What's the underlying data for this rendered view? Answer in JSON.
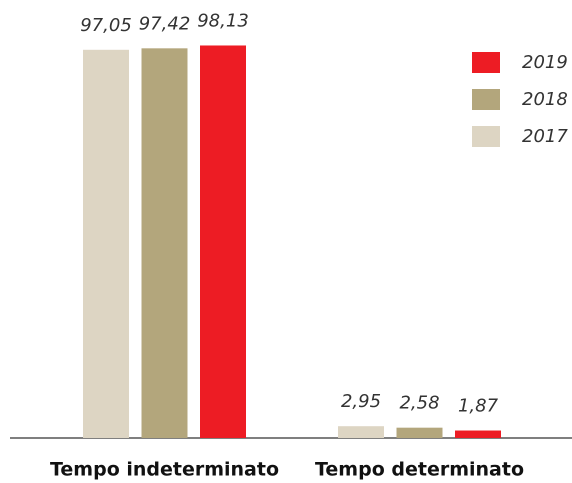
{
  "chart_data": {
    "type": "bar",
    "categories": [
      "Tempo indeterminato",
      "Tempo determinato"
    ],
    "series": [
      {
        "name": "2017",
        "color": "#ddd5c3",
        "values": [
          97.05,
          2.95
        ],
        "value_labels": [
          "97,05",
          "2,95"
        ]
      },
      {
        "name": "2018",
        "color": "#b3a67c",
        "values": [
          97.42,
          2.58
        ],
        "value_labels": [
          "97,42",
          "2,58"
        ]
      },
      {
        "name": "2019",
        "color": "#ed1c24",
        "values": [
          98.13,
          1.87
        ],
        "value_labels": [
          "98,13",
          "1,87"
        ]
      }
    ],
    "ylim": [
      0,
      100
    ],
    "grid": false,
    "legend": "upper right"
  }
}
